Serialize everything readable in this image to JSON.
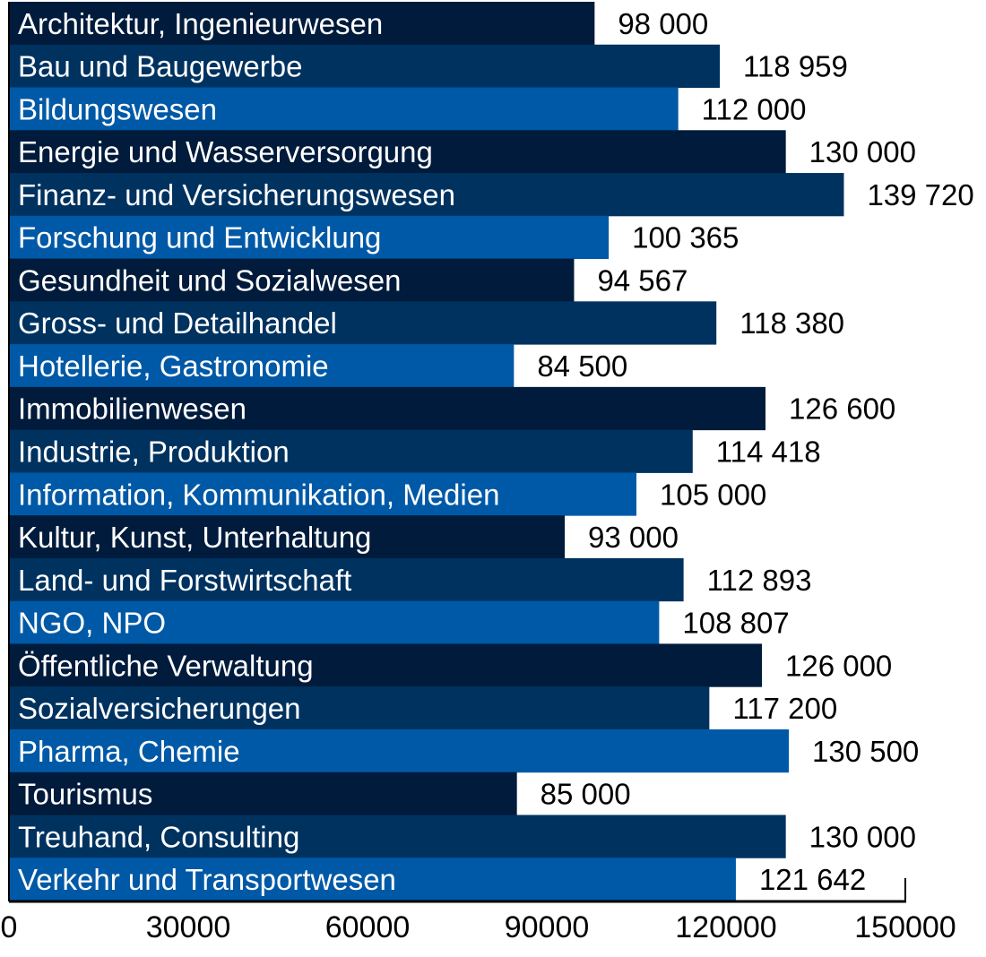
{
  "chart_data": {
    "type": "bar",
    "orientation": "horizontal",
    "title": "",
    "xlabel": "",
    "ylabel": "",
    "xlim": [
      0,
      150000
    ],
    "xticks": [
      "0",
      "30000",
      "60000",
      "90000",
      "120000",
      "150000"
    ],
    "grid": false,
    "colors": [
      "#001b3b",
      "#00325f",
      "#0059a6"
    ],
    "categories": [
      "Architektur, Ingenieurwesen",
      "Bau und Baugewerbe",
      "Bildungswesen",
      "Energie und Wasserversorgung",
      "Finanz- und Versicherungswesen",
      "Forschung und Entwicklung",
      "Gesundheit und Sozialwesen",
      "Gross- und Detailhandel",
      "Hotellerie, Gastronomie",
      "Immobilienwesen",
      "Industrie, Produktion",
      "Information, Kommunikation, Medien",
      "Kultur, Kunst, Unterhaltung",
      "Land- und Forstwirtschaft",
      "NGO, NPO",
      "Öffentliche Verwaltung",
      "Sozialversicherungen",
      "Pharma, Chemie",
      "Tourismus",
      "Treuhand, Consulting",
      "Verkehr und Transportwesen"
    ],
    "values": [
      98000,
      118959,
      112000,
      130000,
      139720,
      100365,
      94567,
      118380,
      84500,
      126600,
      114418,
      105000,
      93000,
      112893,
      108807,
      126000,
      117200,
      130500,
      85000,
      130000,
      121642
    ],
    "value_labels": [
      "98 000",
      "118 959",
      "112 000",
      "130 000",
      "139 720",
      "100 365",
      "94 567",
      "118 380",
      "84 500",
      "126 600",
      "114 418",
      "105 000",
      "93 000",
      "112 893",
      "108 807",
      "126 000",
      "117 200",
      "130 500",
      "85 000",
      "130 000",
      "121 642"
    ]
  }
}
